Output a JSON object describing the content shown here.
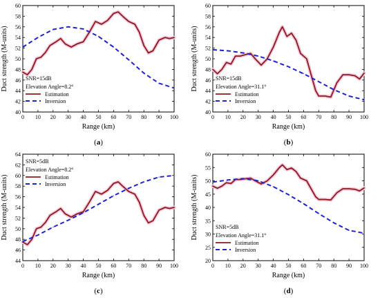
{
  "chart_data": [
    {
      "type": "line",
      "panel_label": "(a)",
      "annotations": [
        "SNR=15dB",
        "Elevation Angle=8.2°"
      ],
      "xlabel": "Range (km)",
      "ylabel": "Duct strength (M-units)",
      "xlim": [
        0,
        100
      ],
      "ylim": [
        40,
        60
      ],
      "xticks": [
        0,
        10,
        20,
        30,
        40,
        50,
        60,
        70,
        80,
        90,
        100
      ],
      "yticks": [
        40,
        42,
        44,
        46,
        48,
        50,
        52,
        54,
        56,
        58,
        60
      ],
      "legend_position": "left",
      "series": [
        {
          "name": "Estimation",
          "style": "solid",
          "color": "#8b1a1a",
          "x": [
            0,
            3,
            6,
            9,
            12,
            15,
            18,
            22,
            25,
            28,
            32,
            36,
            40,
            44,
            48,
            52,
            56,
            60,
            63,
            66,
            70,
            74,
            77,
            80,
            83,
            86,
            90,
            94,
            97,
            100
          ],
          "y": [
            47.5,
            47,
            48,
            50,
            50.3,
            51.2,
            52.5,
            53.2,
            53.8,
            52.8,
            52.2,
            52.8,
            53.2,
            55,
            57,
            56.5,
            57.2,
            58.5,
            58.8,
            58,
            57,
            56.5,
            55,
            52.5,
            51.1,
            51.5,
            53.5,
            54,
            53.8,
            54
          ]
        },
        {
          "name": "Inversion",
          "style": "dashed",
          "color": "#1f22c8",
          "x": [
            0,
            10,
            20,
            30,
            40,
            50,
            60,
            70,
            80,
            90,
            100
          ],
          "y": [
            52.2,
            54,
            55.5,
            56,
            55.6,
            54.2,
            52.2,
            49.8,
            47.3,
            45.4,
            44.5
          ]
        }
      ]
    },
    {
      "type": "line",
      "panel_label": "(b)",
      "annotations": [
        "SNR=15dB",
        "Elevation Angle=31.1°"
      ],
      "xlabel": "Range (km)",
      "ylabel": "Duct strength (M-units)",
      "xlim": [
        0,
        100
      ],
      "ylim": [
        40,
        60
      ],
      "xticks": [
        0,
        10,
        20,
        30,
        40,
        50,
        60,
        70,
        80,
        90,
        100
      ],
      "yticks": [
        40,
        42,
        44,
        46,
        48,
        50,
        52,
        54,
        56,
        58,
        60
      ],
      "legend_position": "left",
      "series": [
        {
          "name": "Estimation",
          "style": "solid",
          "color": "#8b1a1a",
          "x": [
            0,
            3,
            6,
            9,
            12,
            15,
            18,
            22,
            25,
            28,
            32,
            36,
            40,
            44,
            46,
            49,
            52,
            55,
            58,
            62,
            65,
            68,
            70,
            74,
            78,
            82,
            86,
            90,
            94,
            97,
            100
          ],
          "y": [
            48,
            47.2,
            48,
            49.3,
            49,
            50.5,
            50.5,
            50.8,
            51,
            50,
            48.8,
            50,
            52.2,
            55,
            56,
            54.2,
            54.8,
            53.5,
            51,
            50,
            47,
            44,
            43,
            43,
            42.8,
            45.5,
            47,
            47,
            46.8,
            46.2,
            47.3
          ]
        },
        {
          "name": "Inversion",
          "style": "dashed",
          "color": "#1f22c8",
          "x": [
            0,
            10,
            20,
            30,
            40,
            50,
            60,
            70,
            80,
            90,
            100
          ],
          "y": [
            51.7,
            51.5,
            51.1,
            50.5,
            49.6,
            48.5,
            47.2,
            45.7,
            44.2,
            43,
            42.3
          ]
        }
      ]
    },
    {
      "type": "line",
      "panel_label": "(c)",
      "annotations": [
        "SNR=5dB",
        "Elevation Angle=8.2°"
      ],
      "xlabel": "Range (km)",
      "ylabel": "Duct strength (M-units)",
      "xlim": [
        0,
        100
      ],
      "ylim": [
        44,
        64
      ],
      "xticks": [
        0,
        10,
        20,
        30,
        40,
        50,
        60,
        70,
        80,
        90,
        100
      ],
      "yticks": [
        44,
        46,
        48,
        50,
        52,
        54,
        56,
        58,
        60,
        62,
        64
      ],
      "legend_position": "top-left",
      "series": [
        {
          "name": "Estimation",
          "style": "solid",
          "color": "#8b1a1a",
          "x": [
            0,
            3,
            6,
            9,
            12,
            15,
            18,
            22,
            25,
            28,
            32,
            36,
            40,
            44,
            48,
            52,
            56,
            60,
            63,
            66,
            70,
            74,
            77,
            80,
            83,
            86,
            90,
            94,
            97,
            100
          ],
          "y": [
            47.5,
            47,
            48,
            50,
            50.3,
            51.2,
            52.5,
            53.2,
            53.8,
            52.8,
            52.2,
            52.8,
            53.2,
            55,
            57,
            56.5,
            57.2,
            58.5,
            58.8,
            58,
            57,
            56.5,
            55,
            52.5,
            51.1,
            51.5,
            53.5,
            54,
            53.8,
            54
          ]
        },
        {
          "name": "Inversion",
          "style": "dashed",
          "color": "#1f22c8",
          "x": [
            0,
            10,
            20,
            30,
            40,
            50,
            60,
            70,
            80,
            90,
            100
          ],
          "y": [
            47.6,
            48.8,
            50.3,
            51.6,
            53,
            54.6,
            56.2,
            57.6,
            58.8,
            59.7,
            60
          ]
        }
      ]
    },
    {
      "type": "line",
      "panel_label": "(d)",
      "annotations": [
        "SNR=5dB",
        "Elevation Angle=31.1°"
      ],
      "xlabel": "Range (km)",
      "ylabel": "Duct strength (M-units)",
      "xlim": [
        0,
        100
      ],
      "ylim": [
        20,
        60
      ],
      "xticks": [
        0,
        10,
        20,
        30,
        40,
        50,
        60,
        70,
        80,
        90,
        100
      ],
      "yticks": [
        20,
        25,
        30,
        35,
        40,
        45,
        50,
        55,
        60
      ],
      "legend_position": "bottom-left",
      "series": [
        {
          "name": "Estimation",
          "style": "solid",
          "color": "#8b1a1a",
          "x": [
            0,
            3,
            6,
            9,
            12,
            15,
            18,
            22,
            25,
            28,
            32,
            36,
            40,
            44,
            46,
            49,
            52,
            55,
            58,
            62,
            65,
            68,
            70,
            74,
            78,
            82,
            86,
            90,
            94,
            97,
            100
          ],
          "y": [
            48,
            47.2,
            48,
            49.3,
            49,
            50.5,
            50.5,
            50.8,
            51,
            50,
            48.8,
            50,
            52.2,
            55,
            56,
            54.2,
            54.8,
            53.5,
            51,
            50,
            47,
            44,
            43,
            43,
            42.8,
            45.5,
            47,
            47,
            46.8,
            46.2,
            47.3
          ]
        },
        {
          "name": "Inversion",
          "style": "dashed",
          "color": "#1f22c8",
          "x": [
            0,
            10,
            20,
            30,
            40,
            50,
            60,
            70,
            80,
            90,
            100
          ],
          "y": [
            49.5,
            50.3,
            50.8,
            50,
            47.8,
            44.8,
            41.4,
            37.7,
            34.2,
            31.4,
            30.3
          ]
        }
      ]
    }
  ]
}
